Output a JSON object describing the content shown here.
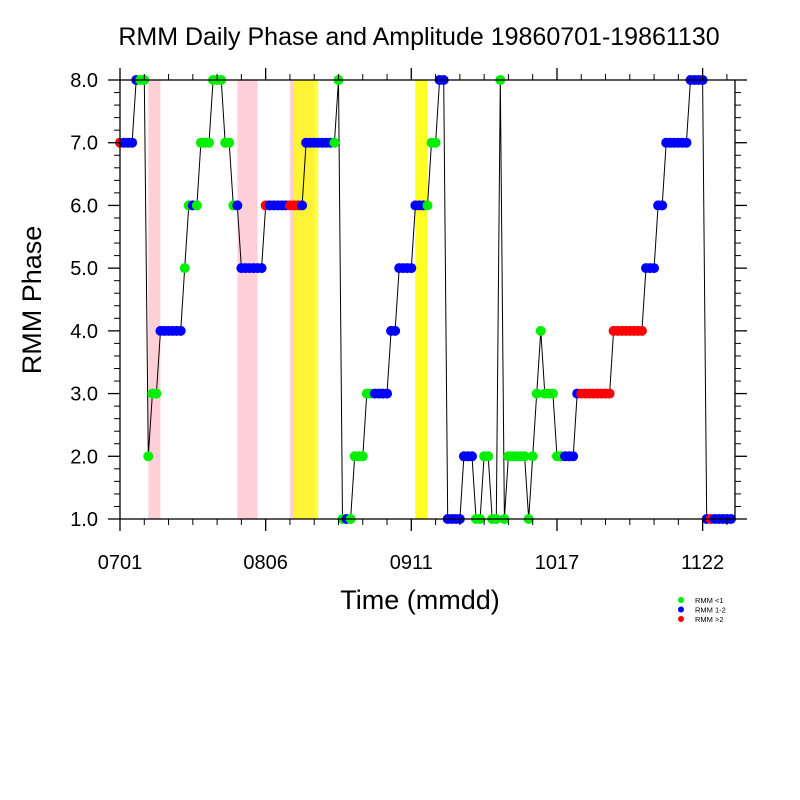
{
  "chart_data": {
    "type": "scatter",
    "title": "RMM Daily Phase and Amplitude 19860701-19861130",
    "xlabel": "Time (mmdd)",
    "ylabel": "RMM Phase",
    "x_start_date": "1986-07-01",
    "x_end_date": "1986-11-30",
    "xlim": [
      "1986-07-01",
      "1986-11-30"
    ],
    "ylim": [
      1.0,
      8.0
    ],
    "x_ticks": [
      {
        "date": "1986-07-01",
        "label": "0701"
      },
      {
        "date": "1986-08-06",
        "label": "0806"
      },
      {
        "date": "1986-09-11",
        "label": "0911"
      },
      {
        "date": "1986-10-17",
        "label": "1017"
      },
      {
        "date": "1986-11-22",
        "label": "1122"
      }
    ],
    "y_ticks": [
      {
        "value": 1,
        "label": "1.0"
      },
      {
        "value": 2,
        "label": "2.0"
      },
      {
        "value": 3,
        "label": "3.0"
      },
      {
        "value": 4,
        "label": "4.0"
      },
      {
        "value": 5,
        "label": "5.0"
      },
      {
        "value": 6,
        "label": "6.0"
      },
      {
        "value": 7,
        "label": "7.0"
      },
      {
        "value": 8,
        "label": "8.0"
      }
    ],
    "legend_position": "bottom-right",
    "legend": [
      {
        "label": "RMM <1",
        "color": "#00ee00"
      },
      {
        "label": "RMM 1-2",
        "color": "#0000ff"
      },
      {
        "label": "RMM >2",
        "color": "#ff0000"
      }
    ],
    "colors": {
      "lt1": "#00ee00",
      "1to2": "#0000ff",
      "gt2": "#ff0000"
    },
    "shaded_periods": [
      {
        "start": "1986-07-08",
        "end": "1986-07-11",
        "color": "#ffc0cb",
        "opacity": 0.75
      },
      {
        "start": "1986-07-30",
        "end": "1986-08-04",
        "color": "#ffc0cb",
        "opacity": 0.75
      },
      {
        "start": "1986-08-12",
        "end": "1986-08-18",
        "color": "#ffc0cb",
        "opacity": 0.75
      },
      {
        "start": "1986-08-13",
        "end": "1986-08-19",
        "color": "#ffff00",
        "opacity": 0.75
      },
      {
        "start": "1986-09-12",
        "end": "1986-09-15",
        "color": "#ffff00",
        "opacity": 0.85
      }
    ],
    "series": [
      {
        "name": "RMM Phase",
        "runs": [
          [
            7,
            "gt2"
          ],
          [
            7,
            "1to2"
          ],
          [
            7,
            "1to2"
          ],
          [
            7,
            "1to2"
          ],
          [
            8,
            "1to2"
          ],
          [
            8,
            "lt1"
          ],
          [
            8,
            "lt1"
          ],
          [
            2,
            "lt1"
          ],
          [
            3,
            "lt1"
          ],
          [
            3,
            "lt1"
          ],
          [
            4,
            "1to2"
          ],
          [
            4,
            "1to2"
          ],
          [
            4,
            "1to2"
          ],
          [
            4,
            "1to2"
          ],
          [
            4,
            "1to2"
          ],
          [
            4,
            "1to2"
          ],
          [
            5,
            "lt1"
          ],
          [
            6,
            "lt1"
          ],
          [
            6,
            "1to2"
          ],
          [
            6,
            "lt1"
          ],
          [
            7,
            "lt1"
          ],
          [
            7,
            "lt1"
          ],
          [
            7,
            "lt1"
          ],
          [
            8,
            "lt1"
          ],
          [
            8,
            "lt1"
          ],
          [
            8,
            "lt1"
          ],
          [
            7,
            "lt1"
          ],
          [
            7,
            "lt1"
          ],
          [
            6,
            "lt1"
          ],
          [
            6,
            "1to2"
          ],
          [
            5,
            "1to2"
          ],
          [
            5,
            "1to2"
          ],
          [
            5,
            "1to2"
          ],
          [
            5,
            "1to2"
          ],
          [
            5,
            "1to2"
          ],
          [
            5,
            "1to2"
          ],
          [
            6,
            "gt2"
          ],
          [
            6,
            "1to2"
          ],
          [
            6,
            "1to2"
          ],
          [
            6,
            "1to2"
          ],
          [
            6,
            "1to2"
          ],
          [
            6,
            "1to2"
          ],
          [
            6,
            "gt2"
          ],
          [
            6,
            "gt2"
          ],
          [
            6,
            "gt2"
          ],
          [
            6,
            "1to2"
          ],
          [
            7,
            "1to2"
          ],
          [
            7,
            "1to2"
          ],
          [
            7,
            "1to2"
          ],
          [
            7,
            "1to2"
          ],
          [
            7,
            "1to2"
          ],
          [
            7,
            "1to2"
          ],
          [
            7,
            "1to2"
          ],
          [
            7,
            "lt1"
          ],
          [
            8,
            "lt1"
          ],
          [
            1,
            "lt1"
          ],
          [
            1,
            "1to2"
          ],
          [
            1,
            "lt1"
          ],
          [
            2,
            "lt1"
          ],
          [
            2,
            "lt1"
          ],
          [
            2,
            "lt1"
          ],
          [
            3,
            "lt1"
          ],
          [
            3,
            "lt1"
          ],
          [
            3,
            "1to2"
          ],
          [
            3,
            "1to2"
          ],
          [
            3,
            "1to2"
          ],
          [
            3,
            "1to2"
          ],
          [
            4,
            "1to2"
          ],
          [
            4,
            "1to2"
          ],
          [
            5,
            "1to2"
          ],
          [
            5,
            "1to2"
          ],
          [
            5,
            "1to2"
          ],
          [
            5,
            "1to2"
          ],
          [
            6,
            "1to2"
          ],
          [
            6,
            "1to2"
          ],
          [
            6,
            "1to2"
          ],
          [
            6,
            "lt1"
          ],
          [
            7,
            "lt1"
          ],
          [
            7,
            "lt1"
          ],
          [
            8,
            "1to2"
          ],
          [
            8,
            "1to2"
          ],
          [
            1,
            "1to2"
          ],
          [
            1,
            "1to2"
          ],
          [
            1,
            "1to2"
          ],
          [
            1,
            "1to2"
          ],
          [
            2,
            "1to2"
          ],
          [
            2,
            "1to2"
          ],
          [
            2,
            "1to2"
          ],
          [
            1,
            "lt1"
          ],
          [
            1,
            "lt1"
          ],
          [
            2,
            "lt1"
          ],
          [
            2,
            "lt1"
          ],
          [
            1,
            "lt1"
          ],
          [
            1,
            "lt1"
          ],
          [
            8,
            "lt1"
          ],
          [
            1,
            "lt1"
          ],
          [
            2,
            "lt1"
          ],
          [
            2,
            "lt1"
          ],
          [
            2,
            "lt1"
          ],
          [
            2,
            "lt1"
          ],
          [
            2,
            "lt1"
          ],
          [
            1,
            "lt1"
          ],
          [
            2,
            "lt1"
          ],
          [
            3,
            "lt1"
          ],
          [
            4,
            "lt1"
          ],
          [
            3,
            "lt1"
          ],
          [
            3,
            "lt1"
          ],
          [
            3,
            "lt1"
          ],
          [
            2,
            "lt1"
          ],
          [
            2,
            "lt1"
          ],
          [
            2,
            "1to2"
          ],
          [
            2,
            "1to2"
          ],
          [
            2,
            "1to2"
          ],
          [
            3,
            "1to2"
          ],
          [
            3,
            "gt2"
          ],
          [
            3,
            "gt2"
          ],
          [
            3,
            "gt2"
          ],
          [
            3,
            "gt2"
          ],
          [
            3,
            "gt2"
          ],
          [
            3,
            "gt2"
          ],
          [
            3,
            "gt2"
          ],
          [
            3,
            "gt2"
          ],
          [
            4,
            "gt2"
          ],
          [
            4,
            "gt2"
          ],
          [
            4,
            "gt2"
          ],
          [
            4,
            "gt2"
          ],
          [
            4,
            "gt2"
          ],
          [
            4,
            "gt2"
          ],
          [
            4,
            "gt2"
          ],
          [
            4,
            "gt2"
          ],
          [
            5,
            "1to2"
          ],
          [
            5,
            "1to2"
          ],
          [
            5,
            "1to2"
          ],
          [
            6,
            "1to2"
          ],
          [
            6,
            "1to2"
          ],
          [
            7,
            "1to2"
          ],
          [
            7,
            "1to2"
          ],
          [
            7,
            "1to2"
          ],
          [
            7,
            "1to2"
          ],
          [
            7,
            "1to2"
          ],
          [
            7,
            "1to2"
          ],
          [
            8,
            "1to2"
          ],
          [
            8,
            "1to2"
          ],
          [
            8,
            "1to2"
          ],
          [
            8,
            "1to2"
          ],
          [
            1,
            "1to2"
          ],
          [
            1,
            "gt2"
          ],
          [
            1,
            "1to2"
          ],
          [
            1,
            "1to2"
          ],
          [
            1,
            "1to2"
          ],
          [
            1,
            "1to2"
          ],
          [
            1,
            "1to2"
          ]
        ]
      }
    ]
  }
}
